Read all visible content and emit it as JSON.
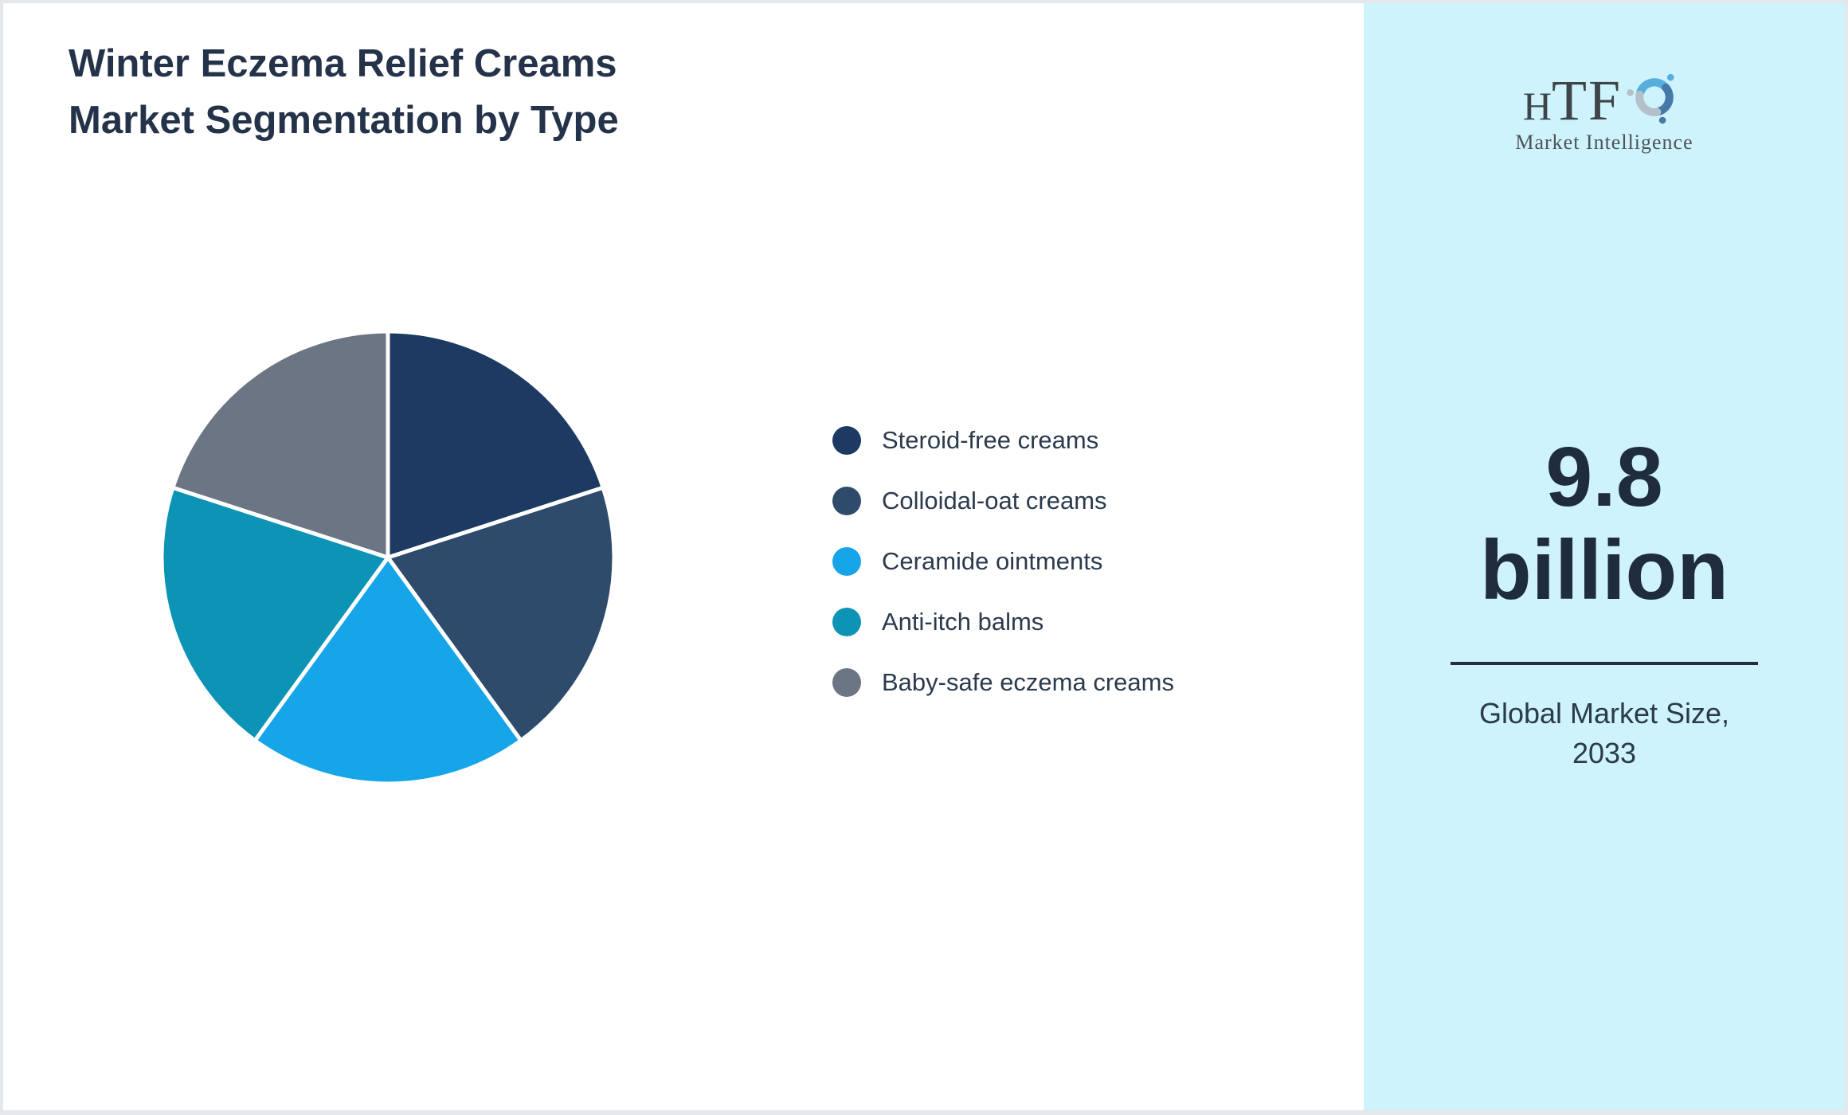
{
  "header": {
    "title_line1": "Winter Eczema Relief Creams",
    "title_line2": "Market Segmentation by Type"
  },
  "chart_data": {
    "type": "pie",
    "title": "Winter Eczema Relief Creams Market Segmentation by Type",
    "categories": [
      "Steroid-free creams",
      "Colloidal-oat creams",
      "Ceramide ointments",
      "Anti-itch balms",
      "Baby-safe eczema creams"
    ],
    "values": [
      20,
      20,
      20,
      20,
      20
    ],
    "unit": "percent share (estimated from equal 72-degree arcs; no data labels shown)",
    "colors": [
      "#1d3a63",
      "#2e4b6b",
      "#16a5e9",
      "#0c93b5",
      "#6c7584"
    ],
    "start_angle_deg": 0,
    "rotation": "clockwise from 12 o'clock",
    "slice_border_color": "#ffffff",
    "legend_position": "right-of-chart",
    "data_labels": "none"
  },
  "sidebar": {
    "background_color": "#cef3fc",
    "logo": {
      "acronym": "HTF",
      "acronym_small": "H",
      "acronym_big": "TF",
      "subtitle": "Market Intelligence",
      "icon": "dolphin-swirl-icon",
      "icon_colors": [
        "#57addc",
        "#4678a8",
        "#b5c0ca"
      ]
    },
    "market_size": {
      "value": "9.8",
      "unit": "billion",
      "caption_line1": "Global Market Size,",
      "caption_line2": "2033"
    }
  },
  "colors": {
    "page_background": "#ffffff",
    "page_border": "#e4e7ec",
    "title_text": "#25334a",
    "legend_text": "#2c3a4d",
    "market_size_text": "#1e2c3e",
    "divider": "#22303f",
    "caption_text": "#2a3a4c"
  }
}
